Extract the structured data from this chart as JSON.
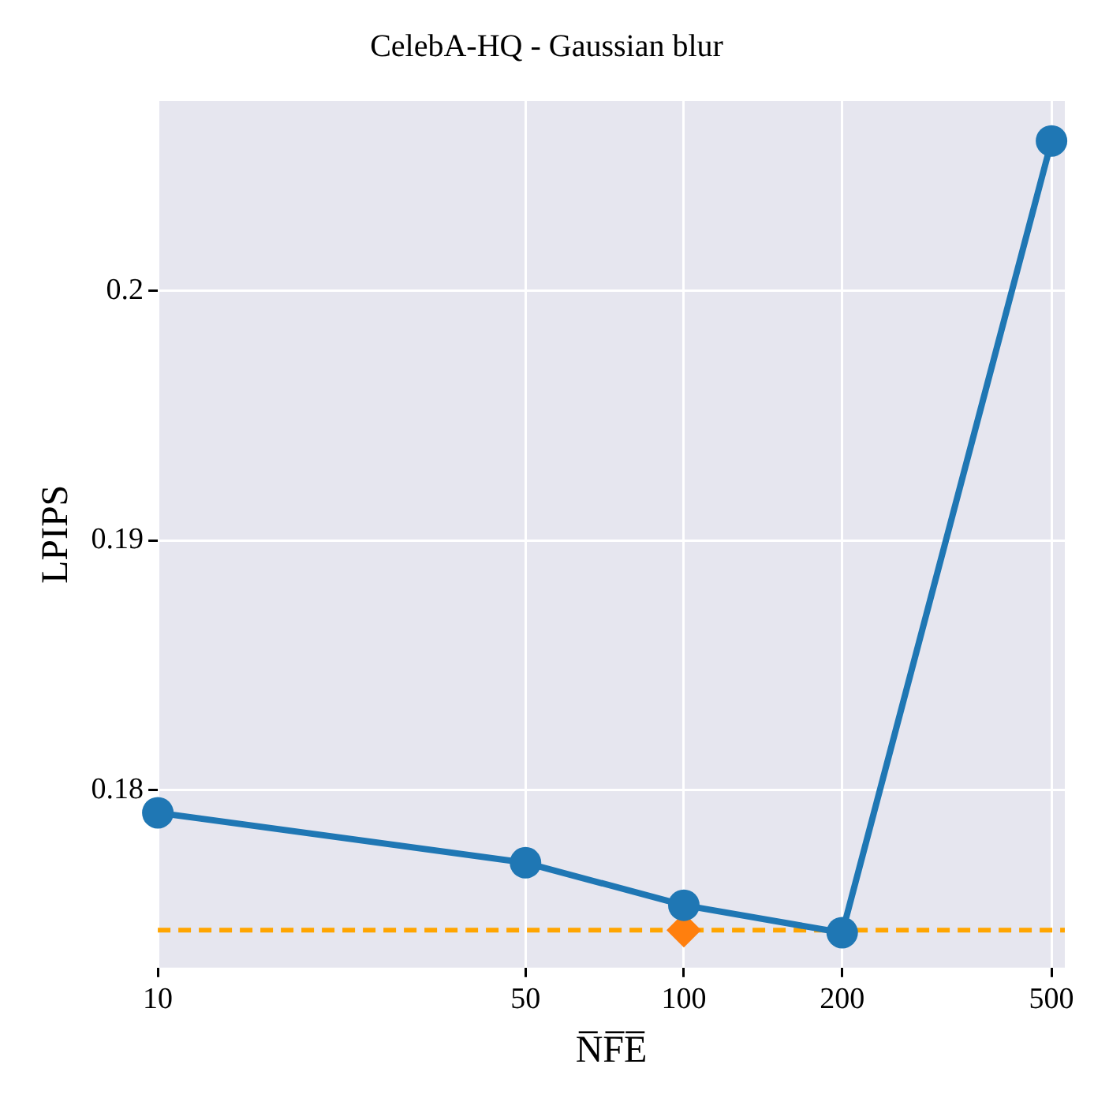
{
  "chart_data": {
    "type": "line",
    "title": "CelebA-HQ - Gaussian blur",
    "xlabel": "N̅F̅E̅",
    "ylabel": "LPIPS",
    "log": "x",
    "grid": true,
    "legend": false,
    "marker": "circle",
    "line_style": "solid",
    "xlim": [
      10,
      530
    ],
    "xticks": [
      10,
      50,
      100,
      200,
      500
    ],
    "ylim": [
      0.1729,
      0.2076
    ],
    "yticks": [
      0.18,
      0.19,
      0.2
    ],
    "x": [
      10,
      50,
      100,
      200,
      500
    ],
    "series": [
      {
        "color": "#1f77b4",
        "values": [
          0.1791,
          0.1771,
          0.1754,
          0.1743,
          0.206
        ]
      },
      {
        "type": "scatter",
        "marker": "diamond",
        "color": "#ff7f0e",
        "x": [
          100
        ],
        "values": [
          0.1744
        ]
      }
    ],
    "ref_lines": [
      {
        "axis": "y",
        "value": 0.1744,
        "color": "#ffa500",
        "line_style": "dashed"
      }
    ]
  }
}
